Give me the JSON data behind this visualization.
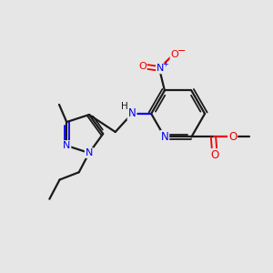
{
  "background_color": "#e6e6e6",
  "bond_color": "#1a1a1a",
  "N_color": "#0000ee",
  "O_color": "#ee0000",
  "figsize": [
    3.0,
    3.0
  ],
  "dpi": 100,
  "xlim": [
    0,
    10
  ],
  "ylim": [
    0,
    10
  ]
}
